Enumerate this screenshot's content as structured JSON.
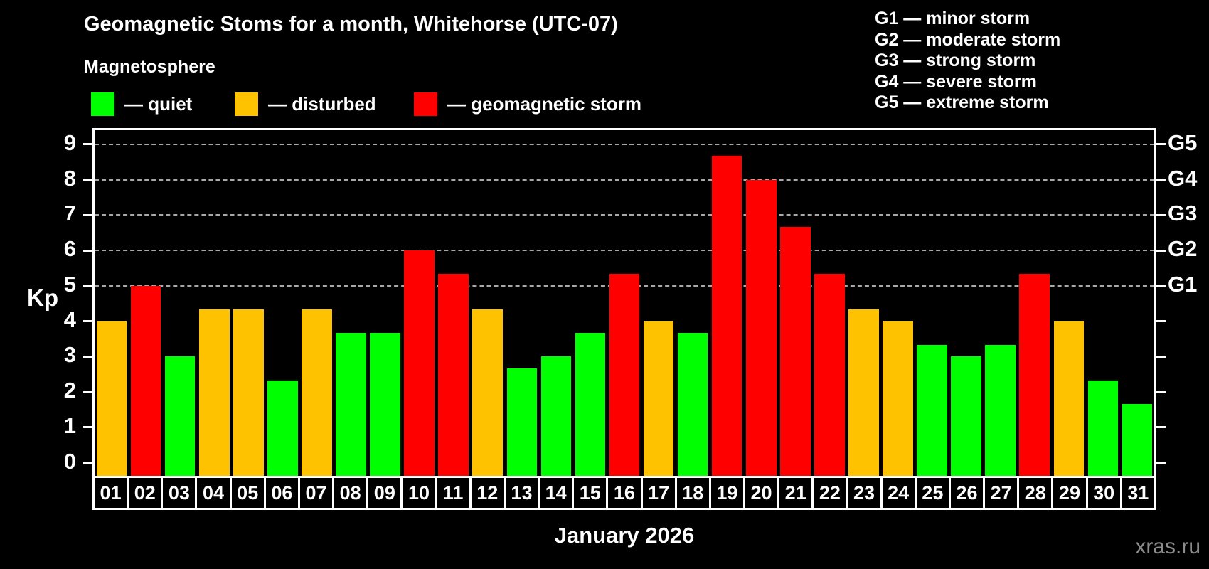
{
  "colors": {
    "background": "#000000",
    "quiet": "#00ff00",
    "disturbed": "#ffc200",
    "storm": "#ff0000",
    "axis": "#ffffff",
    "grid": "#a8a8a8",
    "watermark": "#8c8c8c"
  },
  "header": {
    "title": "Geomagnetic Stoms for a month, Whitehorse (UTC-07)",
    "subtitle": "Magnetosphere"
  },
  "legend": {
    "items": [
      {
        "label": "— quiet",
        "status": "quiet"
      },
      {
        "label": "— disturbed",
        "status": "disturbed"
      },
      {
        "label": "— geomagnetic storm",
        "status": "storm"
      }
    ]
  },
  "storm_scale_legend": {
    "lines": [
      "G1 — minor storm",
      "G2 — moderate storm",
      "G3 — strong storm",
      "G4 — severe storm",
      "G5 — extreme storm"
    ]
  },
  "axes": {
    "y_label": "Kp",
    "y_ticks": [
      0,
      1,
      2,
      3,
      4,
      5,
      6,
      7,
      8,
      9
    ],
    "right_scale": [
      {
        "label": "G1",
        "kp": 5
      },
      {
        "label": "G2",
        "kp": 6
      },
      {
        "label": "G3",
        "kp": 7
      },
      {
        "label": "G4",
        "kp": 8
      },
      {
        "label": "G5",
        "kp": 9
      }
    ]
  },
  "footer": {
    "x_label": "January 2026",
    "watermark": "xras.ru"
  },
  "chart_data": {
    "type": "bar",
    "title": "Geomagnetic Stoms for a month, Whitehorse (UTC-07)",
    "xlabel": "January 2026",
    "ylabel": "Kp",
    "ylim": [
      0,
      9
    ],
    "grid": "horizontal dashed lines at Kp 5,6,7,8,9 (G1-G5)",
    "legend_position": "top",
    "categories": [
      "01",
      "02",
      "03",
      "04",
      "05",
      "06",
      "07",
      "08",
      "09",
      "10",
      "11",
      "12",
      "13",
      "14",
      "15",
      "16",
      "17",
      "18",
      "19",
      "20",
      "21",
      "22",
      "23",
      "24",
      "25",
      "26",
      "27",
      "28",
      "29",
      "30",
      "31"
    ],
    "values": [
      4.0,
      5.0,
      3.0,
      4.33,
      4.33,
      2.33,
      4.33,
      3.67,
      3.67,
      6.0,
      5.33,
      4.33,
      2.67,
      3.0,
      3.67,
      5.33,
      4.0,
      3.67,
      8.67,
      8.0,
      6.67,
      5.33,
      4.33,
      4.0,
      3.33,
      3.0,
      3.33,
      5.33,
      4.0,
      2.33,
      1.67
    ],
    "statuses": [
      "disturbed",
      "storm",
      "quiet",
      "disturbed",
      "disturbed",
      "quiet",
      "disturbed",
      "quiet",
      "quiet",
      "storm",
      "storm",
      "disturbed",
      "quiet",
      "quiet",
      "quiet",
      "storm",
      "disturbed",
      "quiet",
      "storm",
      "storm",
      "storm",
      "storm",
      "disturbed",
      "disturbed",
      "quiet",
      "quiet",
      "quiet",
      "storm",
      "disturbed",
      "quiet",
      "quiet"
    ]
  }
}
